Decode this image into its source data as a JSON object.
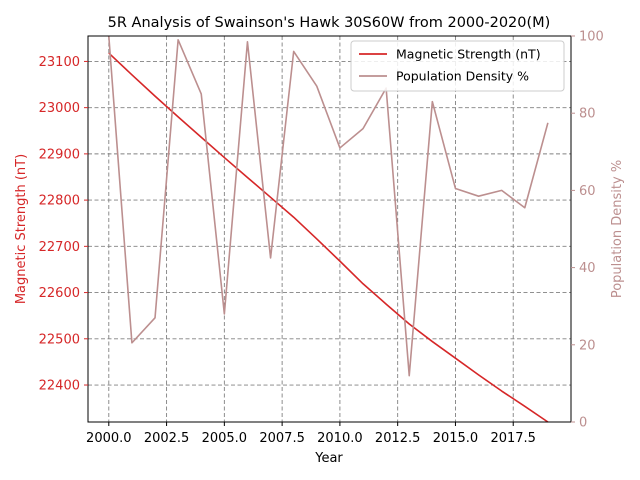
{
  "chart_data": {
    "type": "line",
    "title": "5R Analysis of Swainson's Hawk 30S60W from 2000-2020(M)",
    "xlabel": "Year",
    "ylabel_left": "Magnetic Strength (nT)",
    "ylabel_right": "Population Density %",
    "x": [
      2000,
      2001,
      2002,
      2003,
      2004,
      2005,
      2006,
      2007,
      2008,
      2009,
      2010,
      2011,
      2012,
      2013,
      2014,
      2015,
      2016,
      2017,
      2018,
      2019
    ],
    "xlim": [
      1999.1,
      2020.0
    ],
    "xticks": [
      "2000.0",
      "2002.5",
      "2005.0",
      "2007.5",
      "2010.0",
      "2012.5",
      "2015.0",
      "2017.5"
    ],
    "xtick_values": [
      2000,
      2002.5,
      2005,
      2007.5,
      2010,
      2012.5,
      2015,
      2017.5
    ],
    "ylim_left": [
      22320,
      23155
    ],
    "yticks_left": [
      22400,
      22500,
      22600,
      22700,
      22800,
      22900,
      23000,
      23100
    ],
    "ylim_right": [
      0,
      100
    ],
    "yticks_right": [
      0,
      20,
      40,
      60,
      80,
      100
    ],
    "grid": true,
    "legend_position": "upper right",
    "series": [
      {
        "name": "Magnetic Strength (nT)",
        "axis": "left",
        "color": "#d62728",
        "values": [
          23118,
          23071,
          23025,
          22980,
          22936,
          22892,
          22849,
          22806,
          22763,
          22716,
          22668,
          22619,
          22575,
          22532,
          22494,
          22458,
          22422,
          22387,
          22354,
          22320
        ]
      },
      {
        "name": "Population Density %",
        "axis": "right",
        "color": "#bc8f8f",
        "values": [
          100,
          20.5,
          27,
          99,
          85,
          28,
          98.5,
          42.5,
          96,
          87,
          71,
          76,
          86.5,
          12,
          83,
          60.5,
          58.5,
          60,
          55.5,
          77.5
        ]
      }
    ],
    "axis_colors": {
      "left": "#d62728",
      "right": "#bc8f8f",
      "grid": "#808080"
    }
  }
}
